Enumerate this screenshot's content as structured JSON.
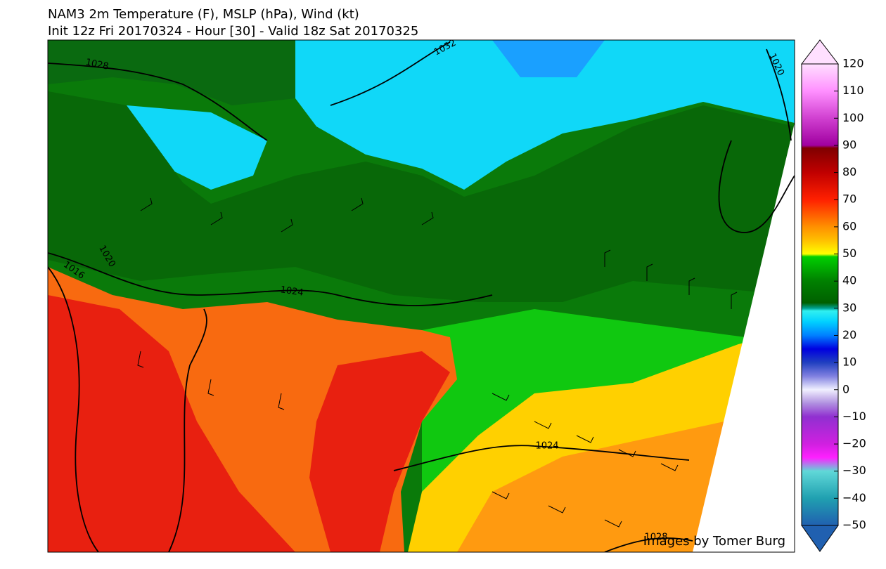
{
  "header": {
    "title": "NAM3 2m Temperature (F), MSLP (hPa), Wind (kt)",
    "subtitle": "Init 12z Fri 20170324 - Hour [30] - Valid 18z Sat 20170325"
  },
  "map": {
    "contour_labels": [
      "1028",
      "1032",
      "1020",
      "1020",
      "1016",
      "1024",
      "1024",
      "1028"
    ],
    "credit": "Images by Tomer Burg"
  },
  "colorbar": {
    "lim": [
      -50,
      120
    ],
    "ticks": [
      {
        "value": -50,
        "label": "−50"
      },
      {
        "value": -40,
        "label": "−40"
      },
      {
        "value": -30,
        "label": "−30"
      },
      {
        "value": -20,
        "label": "−20"
      },
      {
        "value": -10,
        "label": "−10"
      },
      0,
      10,
      20,
      30,
      40,
      50,
      60,
      70,
      80,
      90,
      100,
      110,
      120
    ],
    "stops": [
      {
        "value": -50,
        "color": "#2060b0"
      },
      {
        "value": -40,
        "color": "#20a0b0"
      },
      {
        "value": -30,
        "color": "#60d8d8"
      },
      {
        "value": -25,
        "color": "#ff20ff"
      },
      {
        "value": -20,
        "color": "#d020e0"
      },
      {
        "value": -10,
        "color": "#9030d0"
      },
      {
        "value": -5,
        "color": "#b090e0"
      },
      {
        "value": 0,
        "color": "#f0f0ff"
      },
      {
        "value": 5,
        "color": "#8080e0"
      },
      {
        "value": 10,
        "color": "#2040c0"
      },
      {
        "value": 15,
        "color": "#0000e0"
      },
      {
        "value": 20,
        "color": "#0080ff"
      },
      {
        "value": 25,
        "color": "#00d0ff"
      },
      {
        "value": 29,
        "color": "#30f0f0"
      },
      {
        "value": 30,
        "color": "#00a090"
      },
      {
        "value": 32,
        "color": "#006000"
      },
      {
        "value": 40,
        "color": "#008000"
      },
      {
        "value": 49,
        "color": "#00d000"
      },
      {
        "value": 50,
        "color": "#ffff00"
      },
      {
        "value": 55,
        "color": "#ffc000"
      },
      {
        "value": 60,
        "color": "#ff9000"
      },
      {
        "value": 70,
        "color": "#ff2000"
      },
      {
        "value": 80,
        "color": "#c00000"
      },
      {
        "value": 89,
        "color": "#800000"
      },
      {
        "value": 90,
        "color": "#a000a0"
      },
      {
        "value": 100,
        "color": "#d040d0"
      },
      {
        "value": 110,
        "color": "#ff90ff"
      },
      {
        "value": 120,
        "color": "#ffe0ff"
      }
    ]
  }
}
